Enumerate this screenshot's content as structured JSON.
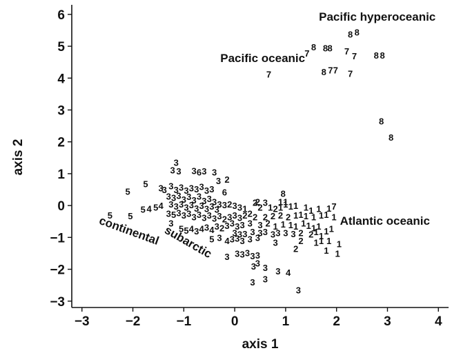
{
  "chart_data": {
    "type": "scatter",
    "xlabel": "axis 1",
    "ylabel": "axis 2",
    "xlim": [
      -3.2,
      4.2
    ],
    "ylim": [
      -3.2,
      6.3
    ],
    "xticks": [
      -3,
      -2,
      -1,
      0,
      1,
      2,
      3,
      4
    ],
    "yticks": [
      -3,
      -2,
      -1,
      0,
      1,
      2,
      3,
      4,
      5,
      6
    ],
    "grid": false,
    "marker": "group number printed as text",
    "annotations": [
      {
        "text": "Pacific hyperoceanic",
        "x": 2.8,
        "y": 5.8,
        "rotation": 0
      },
      {
        "text": "Pacific oceanic",
        "x": 0.55,
        "y": 4.5,
        "rotation": 0
      },
      {
        "text": "Atlantic oceanic",
        "x": 2.95,
        "y": -0.6,
        "rotation": 0
      },
      {
        "text": "continental",
        "x": -2.1,
        "y": -0.9,
        "rotation": 20
      },
      {
        "text": "subarctic",
        "x": -0.95,
        "y": -1.25,
        "rotation": 30
      }
    ],
    "points": [
      {
        "x": 2.4,
        "y": 5.45,
        "label": "8"
      },
      {
        "x": 2.27,
        "y": 5.38,
        "label": "8"
      },
      {
        "x": 1.55,
        "y": 4.98,
        "label": "8"
      },
      {
        "x": 1.78,
        "y": 4.95,
        "label": "8"
      },
      {
        "x": 1.87,
        "y": 4.95,
        "label": "8"
      },
      {
        "x": 2.2,
        "y": 4.85,
        "label": "7"
      },
      {
        "x": 1.42,
        "y": 4.78,
        "label": "7"
      },
      {
        "x": 2.35,
        "y": 4.7,
        "label": "7"
      },
      {
        "x": 2.78,
        "y": 4.72,
        "label": "8"
      },
      {
        "x": 2.9,
        "y": 4.72,
        "label": "8"
      },
      {
        "x": 1.75,
        "y": 4.2,
        "label": "8"
      },
      {
        "x": 1.88,
        "y": 4.25,
        "label": "7"
      },
      {
        "x": 1.98,
        "y": 4.25,
        "label": "7"
      },
      {
        "x": 2.27,
        "y": 4.15,
        "label": "7"
      },
      {
        "x": 0.67,
        "y": 4.12,
        "label": "7"
      },
      {
        "x": 2.88,
        "y": 2.65,
        "label": "8"
      },
      {
        "x": 3.07,
        "y": 2.15,
        "label": "8"
      },
      {
        "x": -1.15,
        "y": 1.35,
        "label": "3"
      },
      {
        "x": -1.22,
        "y": 1.12,
        "label": "3"
      },
      {
        "x": -1.1,
        "y": 1.08,
        "label": "3"
      },
      {
        "x": -0.8,
        "y": 1.1,
        "label": "3"
      },
      {
        "x": -0.7,
        "y": 1.05,
        "label": "6"
      },
      {
        "x": -0.6,
        "y": 1.08,
        "label": "3"
      },
      {
        "x": -0.4,
        "y": 1.05,
        "label": "3"
      },
      {
        "x": -0.32,
        "y": 0.78,
        "label": "3"
      },
      {
        "x": -0.15,
        "y": 0.82,
        "label": "2"
      },
      {
        "x": -1.75,
        "y": 0.68,
        "label": "5"
      },
      {
        "x": -2.1,
        "y": 0.45,
        "label": "5"
      },
      {
        "x": -1.45,
        "y": 0.55,
        "label": "3"
      },
      {
        "x": -1.38,
        "y": 0.5,
        "label": "3"
      },
      {
        "x": -1.25,
        "y": 0.62,
        "label": "3"
      },
      {
        "x": -1.15,
        "y": 0.5,
        "label": "3"
      },
      {
        "x": -1.05,
        "y": 0.58,
        "label": "3"
      },
      {
        "x": -0.95,
        "y": 0.48,
        "label": "3"
      },
      {
        "x": -0.85,
        "y": 0.55,
        "label": "3"
      },
      {
        "x": -0.75,
        "y": 0.52,
        "label": "3"
      },
      {
        "x": -0.65,
        "y": 0.6,
        "label": "3"
      },
      {
        "x": -0.55,
        "y": 0.48,
        "label": "3"
      },
      {
        "x": -0.45,
        "y": 0.52,
        "label": "3"
      },
      {
        "x": -1.3,
        "y": 0.3,
        "label": "3"
      },
      {
        "x": -1.2,
        "y": 0.25,
        "label": "3"
      },
      {
        "x": -1.1,
        "y": 0.32,
        "label": "3"
      },
      {
        "x": -1.0,
        "y": 0.2,
        "label": "3"
      },
      {
        "x": -0.9,
        "y": 0.28,
        "label": "3"
      },
      {
        "x": -0.8,
        "y": 0.18,
        "label": "3"
      },
      {
        "x": -0.7,
        "y": 0.3,
        "label": "3"
      },
      {
        "x": -0.6,
        "y": 0.15,
        "label": "3"
      },
      {
        "x": -0.5,
        "y": 0.22,
        "label": "3"
      },
      {
        "x": -0.4,
        "y": 0.12,
        "label": "3"
      },
      {
        "x": -0.2,
        "y": 0.42,
        "label": "6"
      },
      {
        "x": -1.25,
        "y": 0.05,
        "label": "3"
      },
      {
        "x": -1.15,
        "y": -0.02,
        "label": "3"
      },
      {
        "x": -1.05,
        "y": 0.05,
        "label": "3"
      },
      {
        "x": -0.95,
        "y": -0.05,
        "label": "3"
      },
      {
        "x": -0.85,
        "y": 0.02,
        "label": "3"
      },
      {
        "x": -0.75,
        "y": -0.08,
        "label": "3"
      },
      {
        "x": -0.65,
        "y": 0.0,
        "label": "3"
      },
      {
        "x": -0.55,
        "y": -0.1,
        "label": "3"
      },
      {
        "x": -0.45,
        "y": -0.02,
        "label": "3"
      },
      {
        "x": -0.35,
        "y": -0.12,
        "label": "3"
      },
      {
        "x": -0.3,
        "y": 0.05,
        "label": "3"
      },
      {
        "x": -0.2,
        "y": 0.02,
        "label": "3"
      },
      {
        "x": -0.1,
        "y": 0.05,
        "label": "2"
      },
      {
        "x": 0.0,
        "y": 0.0,
        "label": "3"
      },
      {
        "x": 0.1,
        "y": -0.05,
        "label": "3"
      },
      {
        "x": 0.2,
        "y": -0.1,
        "label": "1"
      },
      {
        "x": -1.8,
        "y": -0.12,
        "label": "5"
      },
      {
        "x": -1.68,
        "y": -0.1,
        "label": "4"
      },
      {
        "x": -1.55,
        "y": -0.05,
        "label": "5"
      },
      {
        "x": -1.45,
        "y": 0.0,
        "label": "4"
      },
      {
        "x": -2.45,
        "y": -0.3,
        "label": "5"
      },
      {
        "x": -2.05,
        "y": -0.32,
        "label": "5"
      },
      {
        "x": -1.3,
        "y": -0.25,
        "label": "3"
      },
      {
        "x": -1.2,
        "y": -0.28,
        "label": "5"
      },
      {
        "x": -1.1,
        "y": -0.22,
        "label": "3"
      },
      {
        "x": -1.0,
        "y": -0.3,
        "label": "3"
      },
      {
        "x": -0.9,
        "y": -0.25,
        "label": "3"
      },
      {
        "x": -0.8,
        "y": -0.35,
        "label": "3"
      },
      {
        "x": -0.7,
        "y": -0.28,
        "label": "3"
      },
      {
        "x": -0.6,
        "y": -0.38,
        "label": "3"
      },
      {
        "x": -0.5,
        "y": -0.3,
        "label": "3"
      },
      {
        "x": -0.4,
        "y": -0.4,
        "label": "3"
      },
      {
        "x": -0.3,
        "y": -0.32,
        "label": "3"
      },
      {
        "x": -0.2,
        "y": -0.42,
        "label": "2"
      },
      {
        "x": -0.1,
        "y": -0.35,
        "label": "3"
      },
      {
        "x": 0.0,
        "y": -0.3,
        "label": "3"
      },
      {
        "x": 0.1,
        "y": -0.38,
        "label": "3"
      },
      {
        "x": 0.2,
        "y": -0.3,
        "label": "2"
      },
      {
        "x": 0.3,
        "y": -0.25,
        "label": "2"
      },
      {
        "x": 0.4,
        "y": -0.35,
        "label": "2"
      },
      {
        "x": 0.4,
        "y": 0.1,
        "label": "2"
      },
      {
        "x": 0.45,
        "y": 0.12,
        "label": "2"
      },
      {
        "x": 0.6,
        "y": 0.1,
        "label": "3"
      },
      {
        "x": 0.5,
        "y": -0.05,
        "label": "2"
      },
      {
        "x": 0.7,
        "y": -0.05,
        "label": "1"
      },
      {
        "x": 0.8,
        "y": -0.1,
        "label": "2"
      },
      {
        "x": 0.9,
        "y": -0.05,
        "label": "1"
      },
      {
        "x": 1.0,
        "y": 0.05,
        "label": "1"
      },
      {
        "x": 1.1,
        "y": -0.02,
        "label": "1"
      },
      {
        "x": 1.2,
        "y": 0.0,
        "label": "1"
      },
      {
        "x": 0.95,
        "y": 0.38,
        "label": "8"
      },
      {
        "x": 0.9,
        "y": 0.12,
        "label": "1"
      },
      {
        "x": 1.0,
        "y": 0.12,
        "label": "1"
      },
      {
        "x": 1.4,
        "y": -0.05,
        "label": "1"
      },
      {
        "x": 1.5,
        "y": -0.15,
        "label": "1"
      },
      {
        "x": 1.65,
        "y": -0.1,
        "label": "1"
      },
      {
        "x": 1.85,
        "y": -0.08,
        "label": "1"
      },
      {
        "x": 1.95,
        "y": -0.02,
        "label": "7"
      },
      {
        "x": 1.95,
        "y": -0.35,
        "label": "1"
      },
      {
        "x": 0.6,
        "y": -0.35,
        "label": "2"
      },
      {
        "x": 0.75,
        "y": -0.32,
        "label": "2"
      },
      {
        "x": 0.9,
        "y": -0.3,
        "label": "2"
      },
      {
        "x": 1.05,
        "y": -0.35,
        "label": "2"
      },
      {
        "x": 1.2,
        "y": -0.3,
        "label": "1"
      },
      {
        "x": 1.3,
        "y": -0.28,
        "label": "1"
      },
      {
        "x": 1.4,
        "y": -0.32,
        "label": "1"
      },
      {
        "x": 1.55,
        "y": -0.35,
        "label": "1"
      },
      {
        "x": 1.7,
        "y": -0.3,
        "label": "1"
      },
      {
        "x": 1.8,
        "y": -0.28,
        "label": "1"
      },
      {
        "x": -1.25,
        "y": -0.55,
        "label": "3"
      },
      {
        "x": -1.05,
        "y": -0.72,
        "label": "5"
      },
      {
        "x": -0.95,
        "y": -0.78,
        "label": "5"
      },
      {
        "x": -0.85,
        "y": -0.72,
        "label": "4"
      },
      {
        "x": -0.75,
        "y": -0.8,
        "label": "3"
      },
      {
        "x": -0.65,
        "y": -0.72,
        "label": "4"
      },
      {
        "x": -0.55,
        "y": -0.68,
        "label": "3"
      },
      {
        "x": -0.45,
        "y": -0.75,
        "label": "4"
      },
      {
        "x": -0.35,
        "y": -0.65,
        "label": "3"
      },
      {
        "x": -0.25,
        "y": -0.7,
        "label": "2"
      },
      {
        "x": -0.15,
        "y": -0.62,
        "label": "3"
      },
      {
        "x": -0.05,
        "y": -0.55,
        "label": "3"
      },
      {
        "x": 0.05,
        "y": -0.65,
        "label": "3"
      },
      {
        "x": 0.15,
        "y": -0.6,
        "label": "3"
      },
      {
        "x": 0.3,
        "y": -0.55,
        "label": "3"
      },
      {
        "x": 0.5,
        "y": -0.6,
        "label": "3"
      },
      {
        "x": 0.65,
        "y": -0.55,
        "label": "2"
      },
      {
        "x": 0.8,
        "y": -0.65,
        "label": "1"
      },
      {
        "x": 0.95,
        "y": -0.58,
        "label": "1"
      },
      {
        "x": 1.1,
        "y": -0.6,
        "label": "1"
      },
      {
        "x": 1.2,
        "y": -0.65,
        "label": "1"
      },
      {
        "x": 1.35,
        "y": -0.55,
        "label": "1"
      },
      {
        "x": 1.45,
        "y": -0.62,
        "label": "1"
      },
      {
        "x": 1.55,
        "y": -0.7,
        "label": "1"
      },
      {
        "x": 1.65,
        "y": -0.65,
        "label": "1"
      },
      {
        "x": 1.9,
        "y": -0.72,
        "label": "1"
      },
      {
        "x": 0.0,
        "y": -0.85,
        "label": "3"
      },
      {
        "x": 0.1,
        "y": -0.9,
        "label": "3"
      },
      {
        "x": 0.2,
        "y": -0.88,
        "label": "3"
      },
      {
        "x": 0.35,
        "y": -0.82,
        "label": "3"
      },
      {
        "x": 0.5,
        "y": -0.85,
        "label": "3"
      },
      {
        "x": 0.6,
        "y": -0.82,
        "label": "3"
      },
      {
        "x": 0.75,
        "y": -0.9,
        "label": "3"
      },
      {
        "x": 0.85,
        "y": -0.85,
        "label": "3"
      },
      {
        "x": 1.0,
        "y": -0.85,
        "label": "3"
      },
      {
        "x": 1.15,
        "y": -0.88,
        "label": "3"
      },
      {
        "x": 1.3,
        "y": -0.85,
        "label": "2"
      },
      {
        "x": 1.5,
        "y": -0.9,
        "label": "2"
      },
      {
        "x": 1.6,
        "y": -0.82,
        "label": "1"
      },
      {
        "x": 1.7,
        "y": -0.95,
        "label": "1"
      },
      {
        "x": 1.8,
        "y": -0.8,
        "label": "1"
      },
      {
        "x": -0.45,
        "y": -1.05,
        "label": "5"
      },
      {
        "x": -0.3,
        "y": -1.0,
        "label": "3"
      },
      {
        "x": -0.15,
        "y": -1.1,
        "label": "4"
      },
      {
        "x": -0.05,
        "y": -1.05,
        "label": "3"
      },
      {
        "x": 0.05,
        "y": -1.02,
        "label": "3"
      },
      {
        "x": 0.15,
        "y": -1.1,
        "label": "3"
      },
      {
        "x": 0.3,
        "y": -1.05,
        "label": "3"
      },
      {
        "x": 0.45,
        "y": -1.0,
        "label": "3"
      },
      {
        "x": 0.8,
        "y": -1.15,
        "label": "3"
      },
      {
        "x": 1.3,
        "y": -1.1,
        "label": "2"
      },
      {
        "x": 1.6,
        "y": -1.15,
        "label": "1"
      },
      {
        "x": 1.7,
        "y": -1.1,
        "label": "1"
      },
      {
        "x": 1.85,
        "y": -1.1,
        "label": "1"
      },
      {
        "x": 2.05,
        "y": -1.2,
        "label": "1"
      },
      {
        "x": 1.2,
        "y": -1.35,
        "label": "2"
      },
      {
        "x": 1.8,
        "y": -1.4,
        "label": "1"
      },
      {
        "x": 2.02,
        "y": -1.5,
        "label": "1"
      },
      {
        "x": -0.15,
        "y": -1.6,
        "label": "3"
      },
      {
        "x": 0.05,
        "y": -1.5,
        "label": "3"
      },
      {
        "x": 0.15,
        "y": -1.52,
        "label": "3"
      },
      {
        "x": 0.25,
        "y": -1.48,
        "label": "3"
      },
      {
        "x": 0.35,
        "y": -1.58,
        "label": "3"
      },
      {
        "x": 0.45,
        "y": -1.55,
        "label": "3"
      },
      {
        "x": 0.37,
        "y": -1.9,
        "label": "3"
      },
      {
        "x": 0.45,
        "y": -1.8,
        "label": "3"
      },
      {
        "x": 0.6,
        "y": -1.95,
        "label": "3"
      },
      {
        "x": 0.85,
        "y": -2.05,
        "label": "3"
      },
      {
        "x": 1.05,
        "y": -2.1,
        "label": "4"
      },
      {
        "x": 0.35,
        "y": -2.4,
        "label": "3"
      },
      {
        "x": 0.6,
        "y": -2.3,
        "label": "3"
      },
      {
        "x": 1.25,
        "y": -2.65,
        "label": "3"
      }
    ]
  }
}
